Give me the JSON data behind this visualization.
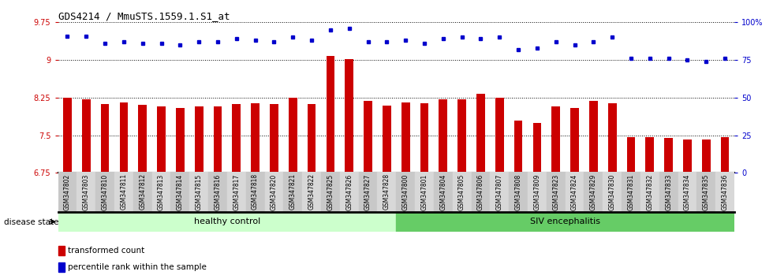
{
  "title": "GDS4214 / MmuSTS.1559.1.S1_at",
  "samples": [
    "GSM347802",
    "GSM347803",
    "GSM347810",
    "GSM347811",
    "GSM347812",
    "GSM347813",
    "GSM347814",
    "GSM347815",
    "GSM347816",
    "GSM347817",
    "GSM347818",
    "GSM347820",
    "GSM347821",
    "GSM347822",
    "GSM347825",
    "GSM347826",
    "GSM347827",
    "GSM347828",
    "GSM347800",
    "GSM347801",
    "GSM347804",
    "GSM347805",
    "GSM347806",
    "GSM347807",
    "GSM347808",
    "GSM347809",
    "GSM347823",
    "GSM347824",
    "GSM347829",
    "GSM347830",
    "GSM347831",
    "GSM347832",
    "GSM347833",
    "GSM347834",
    "GSM347835",
    "GSM347836"
  ],
  "bar_values": [
    8.25,
    8.22,
    8.12,
    8.15,
    8.1,
    8.08,
    8.05,
    8.07,
    8.08,
    8.12,
    8.14,
    8.12,
    8.25,
    8.13,
    9.08,
    9.02,
    8.18,
    8.09,
    8.16,
    8.14,
    8.22,
    8.21,
    8.32,
    8.25,
    7.8,
    7.75,
    8.07,
    8.05,
    8.19,
    8.14,
    7.46,
    7.46,
    7.45,
    7.42,
    7.42,
    7.47
  ],
  "percentile_values": [
    91,
    91,
    86,
    87,
    86,
    86,
    85,
    87,
    87,
    89,
    88,
    87,
    90,
    88,
    95,
    96,
    87,
    87,
    88,
    86,
    89,
    90,
    89,
    90,
    82,
    83,
    87,
    85,
    87,
    90,
    76,
    76,
    76,
    75,
    74,
    76
  ],
  "healthy_count": 18,
  "bar_color": "#CC0000",
  "dot_color": "#0000CC",
  "ylim_left": [
    6.75,
    9.75
  ],
  "ylim_right": [
    0,
    100
  ],
  "yticks_left": [
    6.75,
    7.5,
    8.25,
    9.0,
    9.75
  ],
  "yticks_right": [
    0,
    25,
    50,
    75,
    100
  ],
  "ytick_labels_left": [
    "6.75",
    "7.5",
    "8.25",
    "9",
    "9.75"
  ],
  "ytick_labels_right": [
    "0",
    "25",
    "50",
    "75",
    "100%"
  ],
  "healthy_label": "healthy control",
  "siv_label": "SIV encephalitis",
  "disease_state_label": "disease state",
  "legend_bar_label": "transformed count",
  "legend_dot_label": "percentile rank within the sample",
  "healthy_bg": "#CCFFCC",
  "siv_bg": "#66CC66",
  "xticklabel_bg": "#D0D0D0",
  "title_fontsize": 9,
  "tick_fontsize": 7,
  "label_fontsize": 8,
  "xtick_fontsize": 5.5
}
